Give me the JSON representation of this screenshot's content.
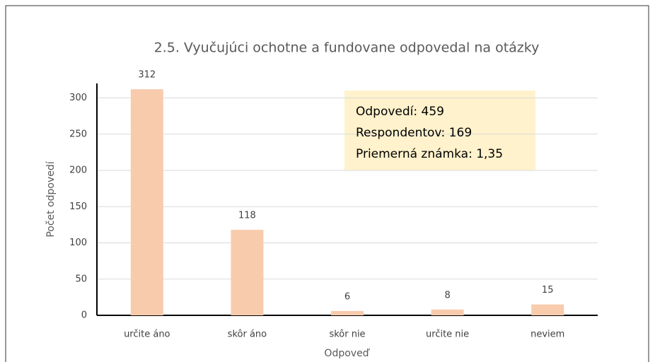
{
  "chart_data": {
    "type": "bar",
    "title": "2.5. Vyučujúci ochotne a fundovane odpovedal na otázky",
    "categories": [
      "určite áno",
      "skôr áno",
      "skôr nie",
      "určite nie",
      "neviem"
    ],
    "values": [
      312,
      118,
      6,
      8,
      15
    ],
    "color": "#f8cbad",
    "xlabel": "Odpoveď",
    "ylabel": "Počet odpovedí",
    "annotations": [
      "Odpovedí: 459",
      "Respondentov: 169",
      "Priemerná známka: 1,35"
    ],
    "ylim": [
      0,
      320
    ],
    "yticks": [
      0,
      50,
      100,
      150,
      200,
      250,
      300
    ],
    "grid": true
  }
}
